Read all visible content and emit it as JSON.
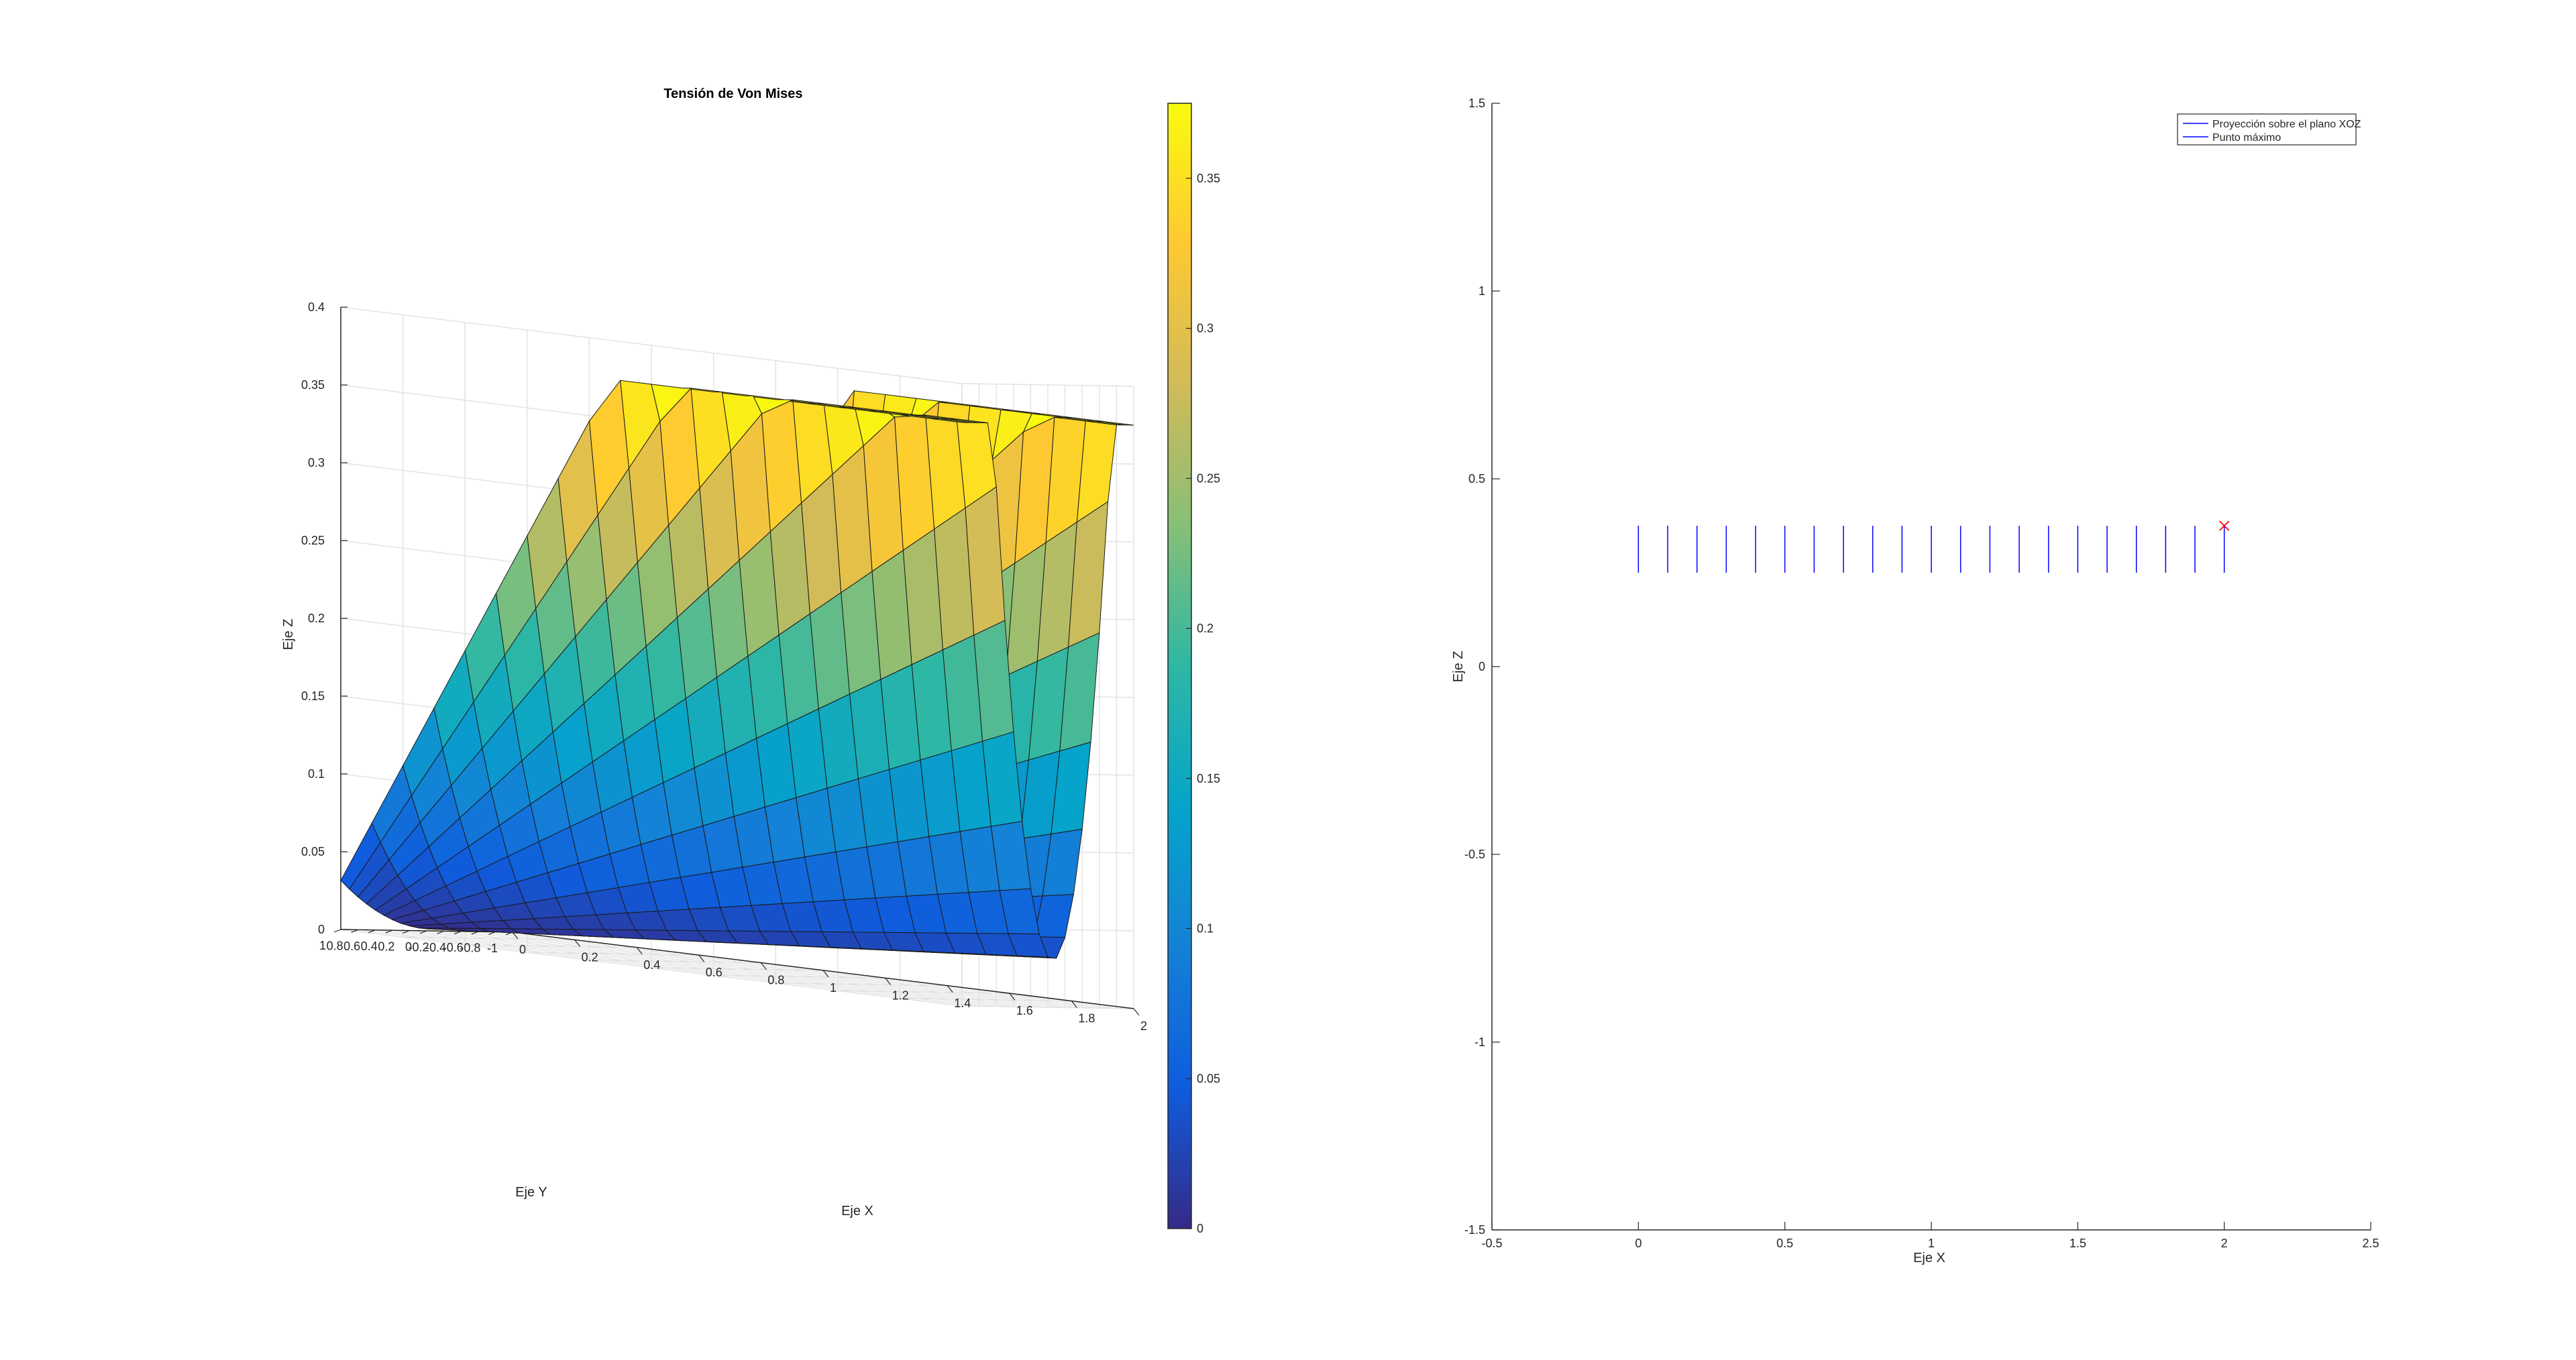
{
  "figure": {
    "background": "#ffffff",
    "colormap_name": "parula"
  },
  "chart_data": [
    {
      "type": "surface",
      "title": "Tensión de Von Mises",
      "xlabel": "Eje X",
      "ylabel": "Eje Y",
      "zlabel": "Eje Z",
      "xlim": [
        0,
        2
      ],
      "ylim": [
        -1,
        1
      ],
      "zlim": [
        0,
        0.4
      ],
      "x_ticks": [
        "0",
        "0.2",
        "0.4",
        "0.6",
        "0.8",
        "1",
        "1.2",
        "1.4",
        "1.6",
        "1.8",
        "2"
      ],
      "y_ticks": [
        "-1",
        "-0.8",
        "-0.6",
        "-0.4",
        "-0.2",
        "0",
        "0.2",
        "0.4",
        "0.6",
        "0.8",
        "1"
      ],
      "z_ticks": [
        "0",
        "0.05",
        "0.1",
        "0.15",
        "0.2",
        "0.25",
        "0.3",
        "0.35",
        "0.4"
      ],
      "grid": true,
      "view": "3-D, azimuth about -37.5°, elevation about 30°",
      "surface_corners": [
        {
          "x": 0,
          "y": -1,
          "z": 0
        },
        {
          "x": 0,
          "y": 1,
          "z": 0.2
        },
        {
          "x": 2,
          "y": 1,
          "z": 0.375
        },
        {
          "x": 2,
          "y": -1,
          "z": 0.375
        }
      ],
      "surface_description": "z grows with x; along y the surface sags to a valley near y = 0 and rises toward y = ±1; maximum about 0.375 at x = 2",
      "colorbar": {
        "range": [
          0,
          0.375
        ],
        "ticks": [
          "0",
          "0.05",
          "0.1",
          "0.15",
          "0.2",
          "0.25",
          "0.3",
          "0.35"
        ],
        "colormap": [
          "#352A87",
          "#0F5CDD",
          "#1481D6",
          "#06A4CA",
          "#2EB7A4",
          "#87BF77",
          "#D1BB59",
          "#FEC832",
          "#F9FB0E"
        ]
      }
    },
    {
      "type": "line",
      "xlabel": "Eje X",
      "ylabel": "Eje Z",
      "xlim": [
        -0.5,
        2.5
      ],
      "ylim": [
        -1.5,
        1.5
      ],
      "x_ticks": [
        "-0.5",
        "0",
        "0.5",
        "1",
        "1.5",
        "2",
        "2.5"
      ],
      "y_ticks": [
        "-1.5",
        "-1",
        "-0.5",
        "0",
        "0.5",
        "1",
        "1.5"
      ],
      "grid": false,
      "legend_position": "top-right",
      "series": [
        {
          "name": "Proyección sobre el plano XOZ",
          "color": "#0000FF",
          "style": "vertical segments",
          "x": [
            0,
            0.1,
            0.2,
            0.3,
            0.4,
            0.5,
            0.6,
            0.7,
            0.8,
            0.9,
            1.0,
            1.1,
            1.2,
            1.3,
            1.4,
            1.5,
            1.6,
            1.7,
            1.8,
            1.9,
            2.0
          ],
          "z_low": 0.25,
          "z_high": 0.375
        },
        {
          "name": "Punto máximo",
          "color": "#FF0000",
          "marker": "x",
          "x": [
            2
          ],
          "y": [
            0.375
          ]
        }
      ]
    }
  ]
}
